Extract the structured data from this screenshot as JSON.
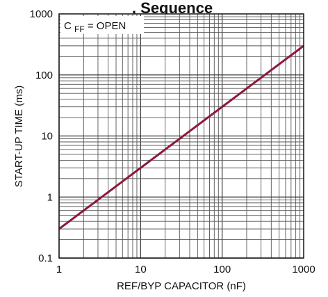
{
  "chart_data": {
    "type": "line",
    "title_fragment": ", Sequence",
    "xlabel": "REF/BYP CAPACITOR (nF)",
    "ylabel": "START-UP TIME (ms)",
    "x_scale": "log",
    "y_scale": "log",
    "xlim": [
      1,
      1000
    ],
    "ylim": [
      0.1,
      1000
    ],
    "x_ticks": [
      1,
      10,
      100,
      1000
    ],
    "x_tick_labels": [
      "1",
      "10",
      "100",
      "1000"
    ],
    "y_ticks": [
      0.1,
      1,
      10,
      100,
      1000
    ],
    "y_tick_labels": [
      "0.1",
      "1",
      "10",
      "100",
      "1000"
    ],
    "grid": true,
    "annotation": {
      "prefix": "C",
      "subscript": "FF",
      "suffix": " = OPEN",
      "position": "top-left"
    },
    "series": [
      {
        "x": [
          1,
          10,
          100,
          1000
        ],
        "y": [
          0.3,
          3,
          30,
          300
        ],
        "color": "#8B1A3A"
      }
    ]
  }
}
